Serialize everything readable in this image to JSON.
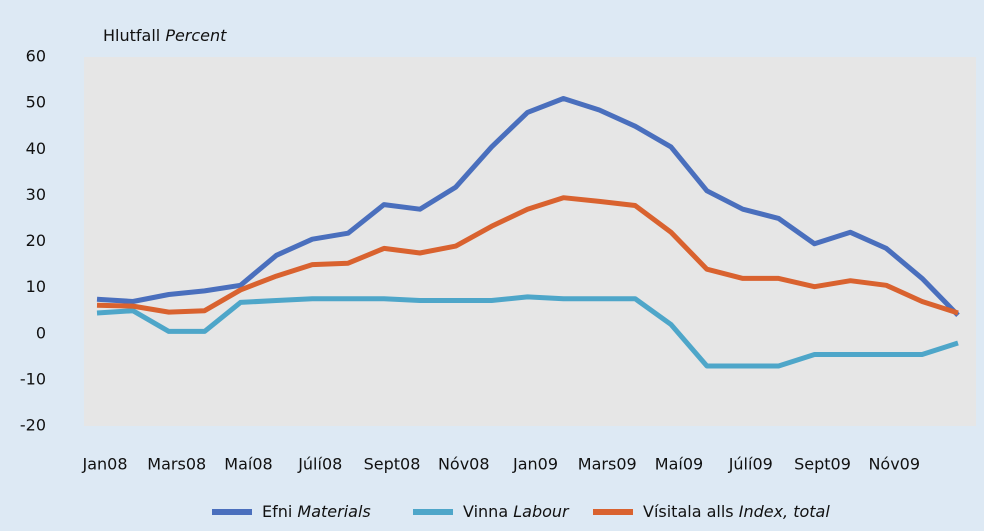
{
  "chart_data": {
    "type": "line",
    "y_label": "Hlutfall",
    "y_label_en": "Percent",
    "categories": [
      "Jan08",
      null,
      "Mars08",
      null,
      "Maí08",
      null,
      "Júlí08",
      null,
      "Sept08",
      null,
      "Nóv08",
      null,
      "Jan09",
      null,
      "Mars09",
      null,
      "Maí09",
      null,
      "Júlí09",
      null,
      "Sept09",
      null,
      "Nóv09",
      null,
      null
    ],
    "series": [
      {
        "name": "Efni",
        "name_en": "Materials",
        "color": "#4a6fbd",
        "values": [
          7.5,
          7,
          8.5,
          9.3,
          10.5,
          17,
          20.5,
          21.8,
          28,
          27,
          31.8,
          40.5,
          48,
          51,
          48.5,
          45,
          40.5,
          31,
          27,
          25,
          19.5,
          22,
          18.5,
          12,
          4
        ]
      },
      {
        "name": "Vinna",
        "name_en": "Labour",
        "color": "#4ea6c9",
        "values": [
          4.5,
          5,
          0.5,
          0.5,
          6.8,
          7.2,
          7.6,
          7.6,
          7.6,
          7.2,
          7.2,
          7.2,
          8,
          7.6,
          7.6,
          7.6,
          2,
          -7,
          -7,
          -7,
          -4.5,
          -4.5,
          -4.5,
          -4.5,
          -2
        ]
      },
      {
        "name": "Vísitala alls",
        "name_en": "Index, total",
        "color": "#d9622f",
        "values": [
          6.2,
          6,
          4.7,
          5,
          9.5,
          12.5,
          15,
          15.3,
          18.5,
          17.5,
          19,
          23.3,
          27,
          29.5,
          28.7,
          27.8,
          22,
          14,
          12,
          12,
          10.2,
          11.5,
          10.5,
          7,
          4.5
        ]
      }
    ],
    "ylim": [
      -20,
      60
    ],
    "yticks": [
      -20,
      -10,
      0,
      10,
      20,
      30,
      40,
      50,
      60
    ],
    "grid": false
  }
}
